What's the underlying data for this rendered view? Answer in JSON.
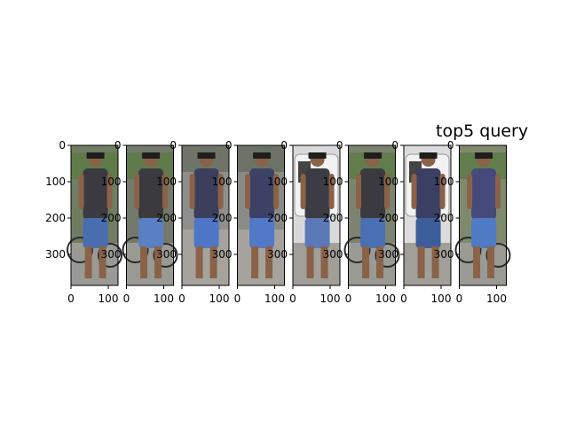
{
  "figure": {
    "title": "top5 query",
    "y_ticks": [
      "0",
      "100",
      "200",
      "300"
    ],
    "x_ticks": [
      "0",
      "100"
    ],
    "panels": [
      {
        "name": "panel-1",
        "scene": "bikes-grass",
        "shirt": "#3a3a40",
        "shorts": "#4a6db0",
        "bg": "#6f7d62"
      },
      {
        "name": "panel-2",
        "scene": "bikes-grass",
        "shirt": "#3b3b3f",
        "shorts": "#5a7fc2",
        "bg": "#737a6c"
      },
      {
        "name": "panel-3",
        "scene": "pavement",
        "shirt": "#3b3f5c",
        "shorts": "#4f76c6",
        "bg": "#8f8f8c"
      },
      {
        "name": "panel-4",
        "scene": "pavement",
        "shirt": "#3d4166",
        "shorts": "#5279c8",
        "bg": "#8a8b86"
      },
      {
        "name": "panel-5",
        "scene": "white-van",
        "shirt": "#3c3c45",
        "shorts": "#5b79b6",
        "bg": "#d9d9d9"
      },
      {
        "name": "panel-6",
        "scene": "bikes-grass",
        "shirt": "#3a3a40",
        "shorts": "#4b6fb3",
        "bg": "#7c8470"
      },
      {
        "name": "panel-7",
        "scene": "white-van",
        "shirt": "#3b3f63",
        "shorts": "#3c5e9a",
        "bg": "#dcdcdc"
      },
      {
        "name": "panel-8",
        "scene": "bikes-grass",
        "shirt": "#454a7a",
        "shorts": "#4f7ac4",
        "bg": "#7f8a6d"
      }
    ]
  }
}
